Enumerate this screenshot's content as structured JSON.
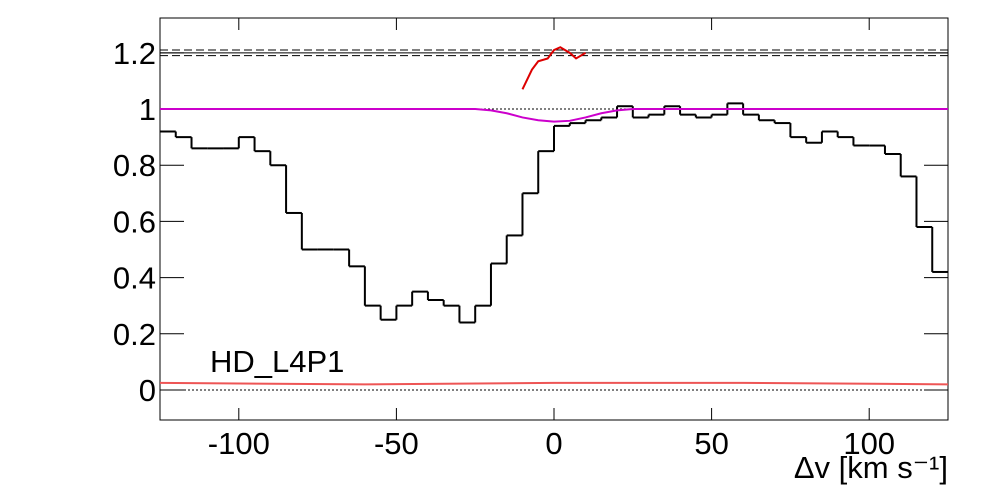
{
  "chart_data": {
    "type": "line",
    "xlabel": "Δv [km s⁻¹]",
    "annotation": "HD_L4P1",
    "xlim": [
      -125,
      125
    ],
    "xticks": [
      -100,
      -50,
      0,
      50,
      100
    ],
    "ylim": [
      -0.107,
      1.324
    ],
    "yticks": [
      0,
      0.2,
      0.4,
      0.6,
      0.8,
      1,
      1.2
    ],
    "hlines": [
      {
        "y": 1.21,
        "style": "dashed"
      },
      {
        "y": 1.2,
        "style": "solid"
      },
      {
        "y": 1.19,
        "style": "dashed"
      },
      {
        "y": 1,
        "style": "dotted"
      },
      {
        "y": 0,
        "style": "dotted"
      }
    ],
    "series": [
      {
        "color": "#000000",
        "bins": [
          -125,
          -120,
          -115,
          -110,
          -105,
          -100,
          -95,
          -90,
          -85,
          -80,
          -75,
          -70,
          -65,
          -60,
          -55,
          -50,
          -45,
          -40,
          -35,
          -30,
          -25,
          -20,
          -15,
          -10,
          -5,
          0,
          5,
          10,
          15,
          20,
          25,
          30,
          35,
          40,
          45,
          50,
          55,
          60,
          65,
          70,
          75,
          80,
          85,
          90,
          95,
          100,
          105,
          110,
          115,
          120,
          125
        ],
        "values": [
          0.92,
          0.9,
          0.86,
          0.86,
          0.86,
          0.9,
          0.85,
          0.8,
          0.63,
          0.5,
          0.5,
          0.5,
          0.44,
          0.3,
          0.25,
          0.3,
          0.35,
          0.32,
          0.3,
          0.24,
          0.3,
          0.45,
          0.55,
          0.7,
          0.85,
          0.94,
          0.95,
          0.96,
          0.97,
          1.01,
          0.97,
          0.98,
          1.01,
          0.98,
          0.97,
          0.98,
          1.02,
          0.98,
          0.96,
          0.95,
          0.9,
          0.88,
          0.92,
          0.9,
          0.87,
          0.87,
          0.84,
          0.76,
          0.58,
          0.42
        ]
      },
      {
        "color": "#cc00cc",
        "x": [
          -125,
          -25,
          -20,
          -15,
          -10,
          -5,
          0,
          5,
          10,
          15,
          20,
          25,
          125
        ],
        "values": [
          1,
          1,
          0.995,
          0.985,
          0.97,
          0.96,
          0.955,
          0.958,
          0.97,
          0.985,
          0.995,
          1,
          1
        ]
      },
      {
        "color": "#dd0000",
        "x": [
          -10,
          -7,
          -5,
          -2,
          0,
          2,
          5,
          7,
          10
        ],
        "values": [
          1.07,
          1.14,
          1.17,
          1.18,
          1.21,
          1.22,
          1.2,
          1.18,
          1.2
        ]
      },
      {
        "color": "#ee5555",
        "x": [
          -125,
          -60,
          0,
          60,
          125
        ],
        "values": [
          0.025,
          0.02,
          0.025,
          0.025,
          0.02
        ]
      }
    ]
  }
}
